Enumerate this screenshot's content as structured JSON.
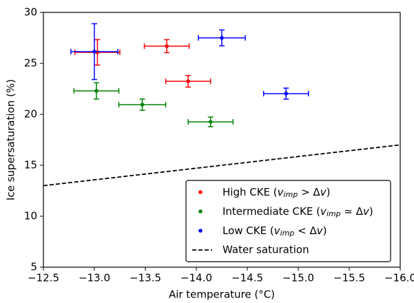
{
  "chart_data": {
    "type": "scatter",
    "xlabel": "Air temperature (°C)",
    "ylabel": "Ice supersaturation (%)",
    "xlim": [
      -12.5,
      -16
    ],
    "xticks": [
      {
        "value": -12.5,
        "label": "−12.5"
      },
      {
        "value": -13.0,
        "label": "−13.0"
      },
      {
        "value": -13.5,
        "label": "−13.5"
      },
      {
        "value": -14.0,
        "label": "−14.0"
      },
      {
        "value": -14.5,
        "label": "−14.5"
      },
      {
        "value": -15.0,
        "label": "−15.0"
      },
      {
        "value": -15.5,
        "label": "−15.5"
      },
      {
        "value": -16.0,
        "label": "−16.0"
      }
    ],
    "ylim": [
      5,
      30
    ],
    "yticks": [
      5,
      10,
      15,
      20,
      25,
      30
    ],
    "legend": "lower right",
    "series": [
      {
        "name": "High CKE (vimp > Δv)",
        "color": "#ff0000",
        "x": [
          -13.03,
          -13.71,
          -13.92
        ],
        "values": [
          26.08,
          26.69,
          23.24
        ],
        "xerr": [
          0.22,
          0.22,
          0.22
        ],
        "yerr": [
          1.25,
          0.64,
          0.57
        ]
      },
      {
        "name": "Intermediate CKE (vimp ≃ Δv)",
        "color": "#008000",
        "x": [
          -13.02,
          -13.47,
          -14.14
        ],
        "values": [
          22.3,
          20.95,
          19.26
        ],
        "xerr": [
          0.22,
          0.23,
          0.22
        ],
        "yerr": [
          0.8,
          0.55,
          0.47
        ]
      },
      {
        "name": "Low CKE (vimp < Δv)",
        "color": "#0000ff",
        "x": [
          -13.0,
          -14.25,
          -14.88
        ],
        "values": [
          26.15,
          27.5,
          22.03
        ],
        "xerr": [
          0.23,
          0.23,
          0.22
        ],
        "yerr": [
          2.74,
          0.78,
          0.54
        ]
      }
    ],
    "lines": [
      {
        "name": "Water saturation",
        "color": "#000000",
        "dashed": true,
        "x": [
          -12.5,
          -16
        ],
        "values": [
          13,
          17
        ]
      }
    ]
  }
}
